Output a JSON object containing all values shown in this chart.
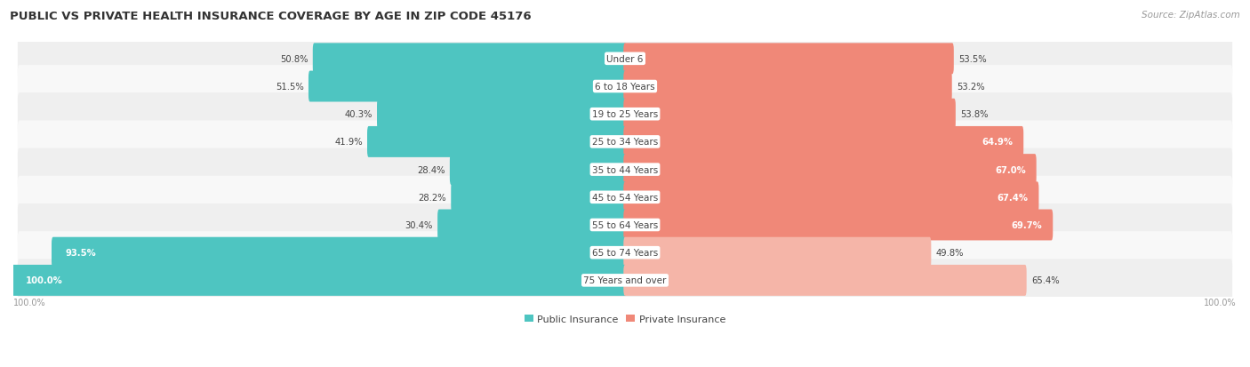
{
  "title": "PUBLIC VS PRIVATE HEALTH INSURANCE COVERAGE BY AGE IN ZIP CODE 45176",
  "source": "Source: ZipAtlas.com",
  "categories": [
    "Under 6",
    "6 to 18 Years",
    "19 to 25 Years",
    "25 to 34 Years",
    "35 to 44 Years",
    "45 to 54 Years",
    "55 to 64 Years",
    "65 to 74 Years",
    "75 Years and over"
  ],
  "public_values": [
    50.8,
    51.5,
    40.3,
    41.9,
    28.4,
    28.2,
    30.4,
    93.5,
    100.0
  ],
  "private_values": [
    53.5,
    53.2,
    53.8,
    64.9,
    67.0,
    67.4,
    69.7,
    49.8,
    65.4
  ],
  "public_color": "#4EC5C1",
  "private_color": "#F08878",
  "private_color_light": "#F5B5A8",
  "row_bg_even": "#EFEFEF",
  "row_bg_odd": "#F8F8F8",
  "label_bg_color": "#FFFFFF",
  "title_color": "#333333",
  "text_color": "#444444",
  "axis_label_color": "#999999",
  "bar_height": 0.62,
  "max_value": 100.0,
  "fig_width": 14.06,
  "fig_height": 4.14,
  "title_fontsize": 9.5,
  "label_fontsize": 7.5,
  "value_fontsize": 7.2,
  "legend_fontsize": 8,
  "source_fontsize": 7.5
}
